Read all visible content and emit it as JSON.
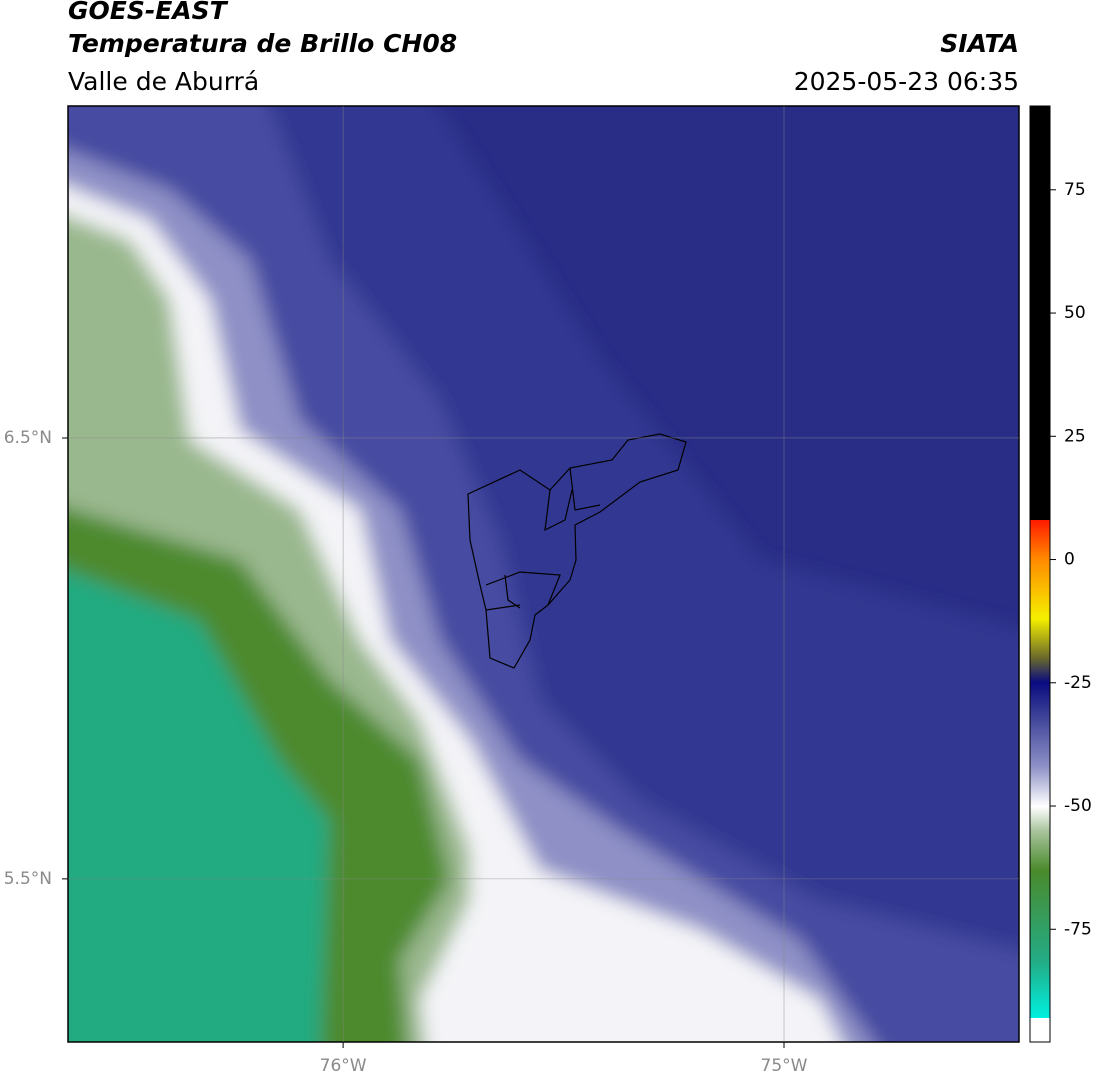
{
  "header": {
    "title": "GOES-EAST",
    "subtitle": "Temperatura de Brillo CH08",
    "region": "Valle de Aburrá",
    "source": "SIATA",
    "timestamp": "2025-05-23 06:35"
  },
  "map": {
    "xlim": [
      -76.624,
      -74.467
    ],
    "ylim": [
      5.13,
      7.253
    ],
    "xticks": [
      {
        "value": -76,
        "label": "76°W"
      },
      {
        "value": -75,
        "label": "75°W"
      }
    ],
    "yticks": [
      {
        "value": 6.5,
        "label": "6.5°N"
      },
      {
        "value": 5.5,
        "label": "5.5°N"
      }
    ]
  },
  "colorbar": {
    "lim": [
      -93,
      92
    ],
    "ticks": [
      75,
      50,
      25,
      0,
      -25,
      -50,
      -75
    ]
  }
}
